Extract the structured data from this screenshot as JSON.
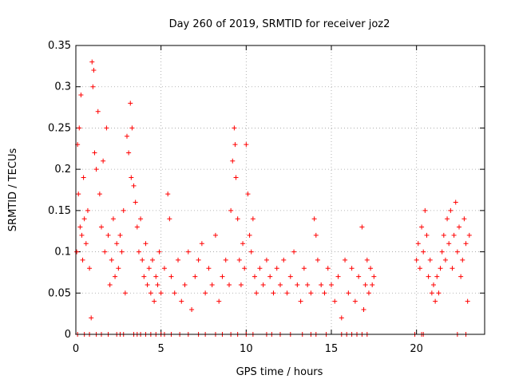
{
  "chart_data": {
    "type": "scatter",
    "title": "Day 260 of 2019, SRMTID for receiver joz2",
    "xlabel": "GPS time / hours",
    "ylabel": "SRMTID / TECUs",
    "xlim": [
      0,
      24
    ],
    "ylim": [
      0,
      0.35
    ],
    "grid": true,
    "marker": "+",
    "color": "#ff0000",
    "x_ticks": [
      {
        "value": 0,
        "label": "0"
      },
      {
        "value": 5,
        "label": "5"
      },
      {
        "value": 10,
        "label": "10"
      },
      {
        "value": 15,
        "label": "15"
      },
      {
        "value": 20,
        "label": "20"
      }
    ],
    "y_ticks": [
      {
        "value": 0,
        "label": "0"
      },
      {
        "value": 0.05,
        "label": "0.05"
      },
      {
        "value": 0.1,
        "label": "0.1"
      },
      {
        "value": 0.15,
        "label": "0.15"
      },
      {
        "value": 0.2,
        "label": "0.2"
      },
      {
        "value": 0.25,
        "label": "0.25"
      },
      {
        "value": 0.3,
        "label": "0.3"
      },
      {
        "value": 0.35,
        "label": "0.35"
      }
    ],
    "series": [
      {
        "name": "SRMTID",
        "points": [
          [
            0.05,
            0.1
          ],
          [
            0.1,
            0.23
          ],
          [
            0.15,
            0.17
          ],
          [
            0.2,
            0.25
          ],
          [
            0.25,
            0.13
          ],
          [
            0.3,
            0.29
          ],
          [
            0.35,
            0.12
          ],
          [
            0.4,
            0.09
          ],
          [
            0.45,
            0.19
          ],
          [
            0.5,
            0.14
          ],
          [
            0.6,
            0.11
          ],
          [
            0.7,
            0.15
          ],
          [
            0.8,
            0.08
          ],
          [
            0.9,
            0.02
          ],
          [
            0.95,
            0.33
          ],
          [
            1.0,
            0.3
          ],
          [
            1.05,
            0.32
          ],
          [
            1.1,
            0.22
          ],
          [
            1.2,
            0.2
          ],
          [
            1.3,
            0.27
          ],
          [
            1.4,
            0.17
          ],
          [
            1.5,
            0.13
          ],
          [
            1.6,
            0.21
          ],
          [
            1.7,
            0.1
          ],
          [
            1.8,
            0.25
          ],
          [
            1.9,
            0.12
          ],
          [
            2.0,
            0.06
          ],
          [
            2.1,
            0.09
          ],
          [
            2.2,
            0.14
          ],
          [
            2.3,
            0.07
          ],
          [
            2.4,
            0.11
          ],
          [
            2.5,
            0.08
          ],
          [
            2.6,
            0.12
          ],
          [
            2.7,
            0.1
          ],
          [
            2.8,
            0.15
          ],
          [
            2.9,
            0.05
          ],
          [
            3.0,
            0.24
          ],
          [
            3.1,
            0.22
          ],
          [
            3.2,
            0.28
          ],
          [
            3.25,
            0.19
          ],
          [
            3.3,
            0.25
          ],
          [
            3.4,
            0.18
          ],
          [
            3.5,
            0.16
          ],
          [
            3.6,
            0.13
          ],
          [
            3.7,
            0.1
          ],
          [
            3.8,
            0.14
          ],
          [
            3.9,
            0.09
          ],
          [
            4.0,
            0.07
          ],
          [
            4.1,
            0.11
          ],
          [
            4.2,
            0.06
          ],
          [
            4.3,
            0.08
          ],
          [
            4.4,
            0.05
          ],
          [
            4.5,
            0.09
          ],
          [
            4.6,
            0.04
          ],
          [
            4.7,
            0.07
          ],
          [
            4.8,
            0.06
          ],
          [
            4.9,
            0.1
          ],
          [
            5.0,
            0.05
          ],
          [
            5.2,
            0.08
          ],
          [
            5.4,
            0.17
          ],
          [
            5.5,
            0.14
          ],
          [
            5.6,
            0.07
          ],
          [
            5.8,
            0.05
          ],
          [
            6.0,
            0.09
          ],
          [
            6.2,
            0.04
          ],
          [
            6.4,
            0.06
          ],
          [
            6.6,
            0.1
          ],
          [
            6.8,
            0.03
          ],
          [
            7.0,
            0.07
          ],
          [
            7.2,
            0.09
          ],
          [
            7.4,
            0.11
          ],
          [
            7.6,
            0.05
          ],
          [
            7.8,
            0.08
          ],
          [
            8.0,
            0.06
          ],
          [
            8.2,
            0.12
          ],
          [
            8.4,
            0.04
          ],
          [
            8.6,
            0.07
          ],
          [
            8.8,
            0.09
          ],
          [
            9.0,
            0.06
          ],
          [
            9.1,
            0.15
          ],
          [
            9.2,
            0.21
          ],
          [
            9.3,
            0.25
          ],
          [
            9.35,
            0.23
          ],
          [
            9.4,
            0.19
          ],
          [
            9.5,
            0.14
          ],
          [
            9.6,
            0.09
          ],
          [
            9.7,
            0.06
          ],
          [
            9.8,
            0.11
          ],
          [
            9.9,
            0.08
          ],
          [
            10.0,
            0.23
          ],
          [
            10.1,
            0.17
          ],
          [
            10.2,
            0.12
          ],
          [
            10.3,
            0.1
          ],
          [
            10.4,
            0.14
          ],
          [
            10.5,
            0.07
          ],
          [
            10.6,
            0.05
          ],
          [
            10.8,
            0.08
          ],
          [
            11.0,
            0.06
          ],
          [
            11.2,
            0.09
          ],
          [
            11.4,
            0.07
          ],
          [
            11.6,
            0.05
          ],
          [
            11.8,
            0.08
          ],
          [
            12.0,
            0.06
          ],
          [
            12.2,
            0.09
          ],
          [
            12.4,
            0.05
          ],
          [
            12.6,
            0.07
          ],
          [
            12.8,
            0.1
          ],
          [
            13.0,
            0.06
          ],
          [
            13.2,
            0.04
          ],
          [
            13.4,
            0.08
          ],
          [
            13.6,
            0.06
          ],
          [
            13.8,
            0.05
          ],
          [
            14.0,
            0.14
          ],
          [
            14.1,
            0.12
          ],
          [
            14.2,
            0.09
          ],
          [
            14.4,
            0.06
          ],
          [
            14.6,
            0.05
          ],
          [
            14.8,
            0.08
          ],
          [
            15.0,
            0.06
          ],
          [
            15.2,
            0.04
          ],
          [
            15.4,
            0.07
          ],
          [
            15.6,
            0.02
          ],
          [
            15.8,
            0.09
          ],
          [
            16.0,
            0.05
          ],
          [
            16.2,
            0.08
          ],
          [
            16.4,
            0.04
          ],
          [
            16.6,
            0.07
          ],
          [
            16.8,
            0.13
          ],
          [
            16.9,
            0.03
          ],
          [
            17.0,
            0.06
          ],
          [
            17.1,
            0.09
          ],
          [
            17.2,
            0.05
          ],
          [
            17.3,
            0.08
          ],
          [
            17.4,
            0.06
          ],
          [
            17.5,
            0.07
          ],
          [
            20.0,
            0.09
          ],
          [
            20.1,
            0.11
          ],
          [
            20.2,
            0.08
          ],
          [
            20.3,
            0.13
          ],
          [
            20.4,
            0.1
          ],
          [
            20.5,
            0.15
          ],
          [
            20.6,
            0.12
          ],
          [
            20.7,
            0.07
          ],
          [
            20.8,
            0.09
          ],
          [
            20.9,
            0.05
          ],
          [
            21.0,
            0.06
          ],
          [
            21.1,
            0.04
          ],
          [
            21.2,
            0.07
          ],
          [
            21.3,
            0.05
          ],
          [
            21.4,
            0.08
          ],
          [
            21.5,
            0.1
          ],
          [
            21.6,
            0.12
          ],
          [
            21.7,
            0.09
          ],
          [
            21.8,
            0.14
          ],
          [
            21.9,
            0.11
          ],
          [
            22.0,
            0.15
          ],
          [
            22.1,
            0.08
          ],
          [
            22.2,
            0.12
          ],
          [
            22.3,
            0.16
          ],
          [
            22.4,
            0.1
          ],
          [
            22.5,
            0.13
          ],
          [
            22.6,
            0.07
          ],
          [
            22.7,
            0.09
          ],
          [
            22.8,
            0.14
          ],
          [
            22.9,
            0.11
          ],
          [
            23.0,
            0.04
          ],
          [
            23.1,
            0.12
          ]
        ],
        "zero_marks": [
          0.1,
          0.5,
          0.8,
          1.2,
          1.5,
          1.9,
          2.4,
          2.6,
          2.8,
          3.4,
          3.6,
          3.8,
          4.1,
          4.4,
          4.7,
          5.0,
          5.2,
          5.6,
          6.1,
          6.6,
          7.2,
          7.6,
          8.2,
          8.6,
          9.1,
          9.5,
          10.0,
          10.4,
          11.2,
          11.5,
          12.0,
          12.6,
          13.3,
          13.8,
          14.1,
          14.7,
          15.6,
          15.9,
          16.2,
          16.5,
          16.8,
          17.1,
          19.9,
          20.3,
          20.4,
          22.4,
          22.9
        ]
      }
    ]
  }
}
